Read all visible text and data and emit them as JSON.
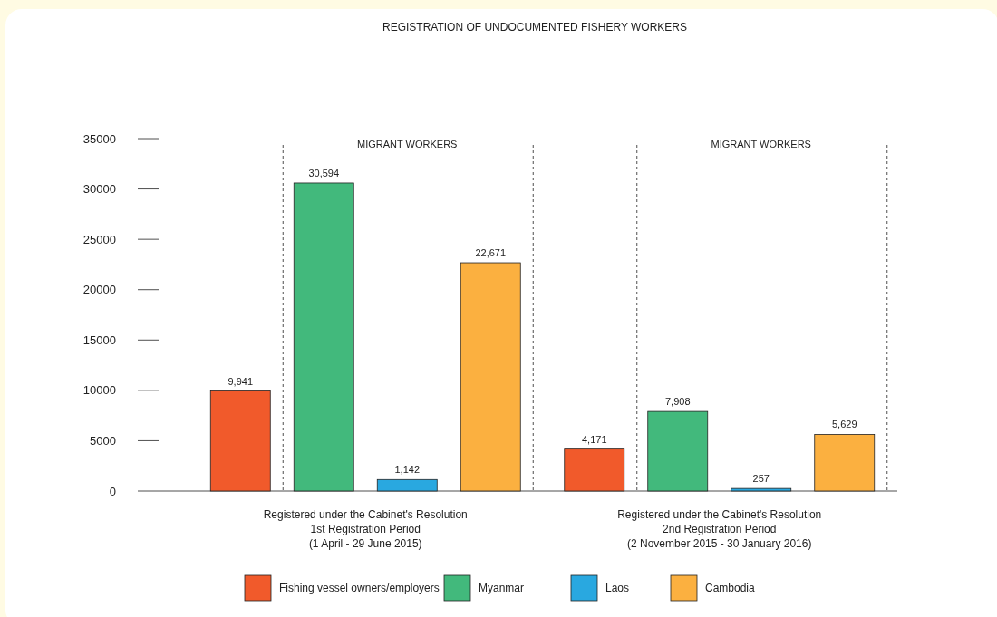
{
  "chart_data": {
    "type": "bar",
    "title": "REGISTRATION OF UNDOCUMENTED FISHERY WORKERS",
    "categories": [
      "Registered under the Cabinet's Resolution\n1st Registration Period\n(1 April - 29 June 2015)",
      "Registered under the Cabinet's Resolution\n2nd Registration Period\n(2 November 2015 - 30 January 2016)"
    ],
    "series": [
      {
        "name": "Fishing vessel owners/employers",
        "color": "#f15a2b",
        "values": [
          9941,
          4171
        ],
        "value_labels": [
          "9,941",
          "4,171"
        ]
      },
      {
        "name": "Myanmar",
        "color": "#42b97c",
        "values": [
          30594,
          7908
        ],
        "value_labels": [
          "30,594",
          "7,908"
        ]
      },
      {
        "name": "Laos",
        "color": "#29a8e0",
        "values": [
          1142,
          257
        ],
        "value_labels": [
          "1,142",
          "257"
        ]
      },
      {
        "name": "Cambodia",
        "color": "#fbb040",
        "values": [
          22671,
          5629
        ],
        "value_labels": [
          "22,671",
          "5,629"
        ]
      }
    ],
    "ylim": [
      0,
      35000
    ],
    "yticks": [
      0,
      5000,
      10000,
      15000,
      20000,
      25000,
      30000,
      35000
    ],
    "grid": false,
    "legend": "bottom",
    "annotations": [
      "MIGRANT WORKERS",
      "MIGRANT WORKERS"
    ]
  }
}
